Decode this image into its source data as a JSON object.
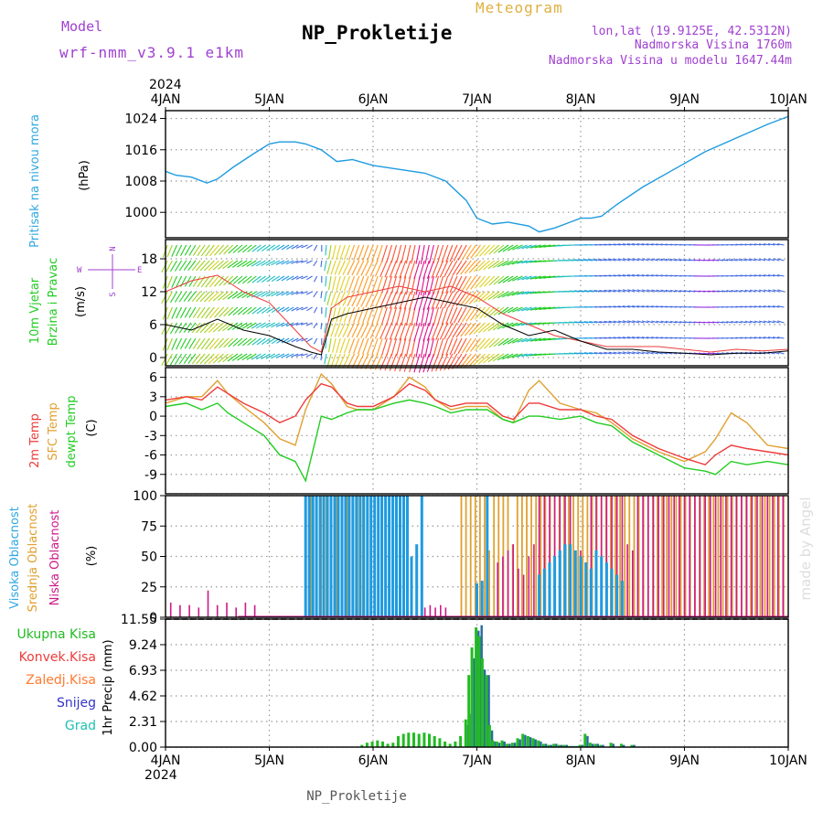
{
  "header": {
    "model_label": "Model",
    "model_name": "wrf-nmm_v3.9.1 e1km",
    "title": "NP_Prokletije",
    "subtitle": "Meteogram",
    "lonlat": "lon,lat (19.9125E, 42.5312N)",
    "altitude": "Nadmorska Visina 1760m",
    "model_altitude": "Nadmorska Visina u modelu 1647.44m",
    "credit": "made by Angel",
    "footer": "NP_Prokletije"
  },
  "colors": {
    "pressure": "#1e9be0",
    "temp2m": "#ee3b3b",
    "sfc_temp": "#e0a030",
    "dewpoint": "#22cc22",
    "high_cloud": "#1e9be0",
    "mid_cloud": "#e0a030",
    "low_cloud": "#cc1a88",
    "precip_total": "#22bb22",
    "precip_snow": "#3333cc",
    "label_purple": "#a040d0",
    "label_blue": "#30a8e0"
  },
  "time_axis": {
    "year": "2024",
    "labels": [
      "4JAN",
      "5JAN",
      "6JAN",
      "7JAN",
      "8JAN",
      "9JAN",
      "10JAN"
    ]
  },
  "chart_data": [
    {
      "type": "line",
      "id": "pressure",
      "ylabel": "Pritisak na nivou mora",
      "unit": "(hPa)",
      "yticks": [
        1000,
        1008,
        1016,
        1024
      ],
      "ylim": [
        993.5,
        1026
      ],
      "x": [
        0,
        0.1,
        0.25,
        0.4,
        0.5,
        0.65,
        0.85,
        1.0,
        1.1,
        1.25,
        1.35,
        1.5,
        1.6,
        1.65,
        1.8,
        2.0,
        2.25,
        2.5,
        2.7,
        2.9,
        3.0,
        3.15,
        3.3,
        3.5,
        3.6,
        3.75,
        3.9,
        4.0,
        4.1,
        4.2,
        4.35,
        4.6,
        4.9,
        5.2,
        5.5,
        5.8,
        6.0
      ],
      "series": [
        {
          "name": "pressure",
          "values": [
            1010.5,
            1009.5,
            1009,
            1007.5,
            1008.5,
            1011.5,
            1015,
            1017.5,
            1018,
            1018,
            1017.5,
            1016,
            1014,
            1013,
            1013.5,
            1012,
            1011,
            1010,
            1008,
            1003,
            998.5,
            997,
            997.5,
            996.5,
            995,
            996,
            997.5,
            998.5,
            998.5,
            999,
            1002,
            1006.5,
            1011,
            1015.5,
            1019,
            1022.5,
            1024.5
          ]
        }
      ]
    },
    {
      "type": "line",
      "id": "wind",
      "ylabel": "10m Vjetar",
      "ylabel2": "Brzina i Pravac",
      "unit": "(m/s)",
      "compass": {
        "n": "N",
        "s": "S",
        "w": "W",
        "e": "E"
      },
      "yticks": [
        0,
        6,
        12,
        18
      ],
      "ylim": [
        -1.5,
        21.5
      ],
      "x": [
        0,
        0.25,
        0.5,
        0.75,
        1.0,
        1.25,
        1.4,
        1.5,
        1.6,
        1.75,
        2.0,
        2.25,
        2.5,
        2.75,
        3.0,
        3.25,
        3.5,
        3.75,
        4.0,
        4.25,
        4.5,
        4.75,
        5.0,
        5.25,
        5.5,
        5.75,
        6.0
      ],
      "series": [
        {
          "name": "speed",
          "values": [
            6,
            5,
            7,
            5,
            4,
            2,
            1,
            0.5,
            7,
            8,
            9,
            10,
            11,
            10,
            9,
            6,
            4,
            5,
            3,
            1.5,
            1.5,
            1,
            0.8,
            0.5,
            0.8,
            0.8,
            1.2
          ]
        },
        {
          "name": "gust",
          "values": [
            12,
            14,
            15,
            12,
            10,
            5,
            2,
            1,
            9,
            11,
            12,
            13,
            12,
            13,
            11,
            8,
            6,
            4,
            3,
            2,
            2,
            2,
            1.5,
            1,
            1.5,
            1.2,
            1.5
          ]
        }
      ],
      "direction_deg": [
        200,
        210,
        220,
        230,
        235,
        240,
        250,
        180,
        190,
        200,
        200,
        195,
        190,
        200,
        215,
        230,
        250,
        260,
        270,
        275,
        280,
        280,
        275,
        270,
        275,
        280,
        280
      ]
    },
    {
      "type": "line",
      "id": "temperature",
      "ylabel": "2m Temp",
      "ylabel2": "SFC Temp",
      "ylabel3": "dewpt Temp",
      "unit": "(C)",
      "yticks": [
        -9,
        -6,
        -3,
        0,
        3,
        6
      ],
      "ylim": [
        -12,
        7.5
      ],
      "x": [
        0,
        0.2,
        0.35,
        0.5,
        0.6,
        0.75,
        0.95,
        1.1,
        1.25,
        1.35,
        1.5,
        1.6,
        1.75,
        1.85,
        2.0,
        2.2,
        2.35,
        2.5,
        2.6,
        2.75,
        2.9,
        3.1,
        3.25,
        3.35,
        3.5,
        3.6,
        3.8,
        4.0,
        4.15,
        4.3,
        4.5,
        4.75,
        5.0,
        5.2,
        5.3,
        5.45,
        5.6,
        5.8,
        6.0
      ],
      "series": [
        {
          "name": "2m",
          "values": [
            2.5,
            3,
            2.5,
            4.5,
            3.5,
            2,
            0.5,
            -1,
            0,
            2.5,
            5,
            4.5,
            2,
            1.5,
            1.5,
            3,
            5,
            4,
            2.5,
            1.5,
            2,
            2,
            0,
            -0.5,
            2,
            2,
            1,
            1,
            0,
            -0.5,
            -3,
            -5,
            -6.5,
            -7.5,
            -6,
            -4.5,
            -5,
            -5.5,
            -6
          ]
        },
        {
          "name": "sfc",
          "values": [
            2,
            3,
            3,
            5.5,
            3.5,
            1.5,
            -1,
            -3.5,
            -4.5,
            1,
            6.5,
            5,
            1.5,
            1,
            1,
            3,
            6,
            4.5,
            2.5,
            1,
            1.5,
            1.5,
            -0.5,
            -1,
            4,
            5.5,
            2,
            1,
            0.5,
            -1,
            -3.5,
            -5.5,
            -7,
            -5.5,
            -3.5,
            0.5,
            -1,
            -4.5,
            -5
          ]
        },
        {
          "name": "dewpt",
          "values": [
            1.5,
            2,
            1,
            2,
            0.5,
            -1,
            -3,
            -6,
            -7,
            -10,
            0,
            -0.5,
            0.5,
            1,
            1,
            2,
            2.5,
            2,
            1.5,
            0.5,
            1,
            1,
            -0.5,
            -1,
            0,
            0,
            -0.5,
            0,
            -1,
            -1.5,
            -4,
            -6,
            -8,
            -8.5,
            -9,
            -7,
            -7.5,
            -7,
            -7.5
          ]
        }
      ]
    },
    {
      "type": "bar",
      "id": "cloud",
      "ylabel": "Visoka Oblacnost",
      "ylabel2": "Srednja Oblacnost",
      "ylabel3": "Niska Oblacnost",
      "unit": "(%)",
      "yticks": [
        0,
        25,
        50,
        75,
        100
      ],
      "ylim": [
        0,
        100
      ],
      "segments": [
        {
          "name": "low",
          "from": 0.05,
          "to": 0.9,
          "step": 0.09,
          "values": [
            12,
            10,
            10,
            8,
            22,
            10,
            12,
            8,
            12,
            10
          ]
        },
        {
          "name": "mid",
          "from": 1.35,
          "to": 1.95,
          "step": 0.05,
          "values": [
            100,
            100,
            100,
            100,
            100,
            100,
            100,
            100,
            100,
            100,
            100,
            100,
            100
          ]
        },
        {
          "name": "high",
          "from": 1.35,
          "to": 2.35,
          "step": 0.035,
          "values": [
            100,
            100,
            100,
            100,
            100,
            100,
            100,
            100,
            100,
            100,
            100,
            100,
            100,
            100,
            100,
            100,
            100,
            100,
            100,
            100,
            100,
            100,
            100,
            100,
            100,
            100,
            100,
            100,
            100
          ]
        },
        {
          "name": "high",
          "from": 2.37,
          "to": 2.47,
          "step": 0.05,
          "values": [
            50,
            60,
            100
          ]
        },
        {
          "name": "low",
          "from": 2.5,
          "to": 2.7,
          "step": 0.05,
          "values": [
            8,
            10,
            8,
            10,
            8
          ]
        },
        {
          "name": "mid",
          "from": 2.85,
          "to": 6.0,
          "step": 0.045,
          "values": [
            100,
            100,
            100,
            100,
            100,
            100,
            55,
            100,
            100,
            100,
            100,
            60,
            100,
            100,
            100,
            100,
            100,
            100,
            100,
            100,
            100,
            100,
            100,
            100,
            100,
            100,
            100,
            100,
            100,
            100,
            100,
            100,
            100,
            100,
            100,
            100,
            100,
            100,
            100,
            100,
            100,
            100,
            100,
            100,
            100,
            100,
            100,
            100,
            100,
            100,
            100,
            100,
            100,
            100,
            100,
            100,
            100,
            100,
            100,
            100,
            100,
            100,
            100,
            100,
            100,
            100,
            100,
            100,
            100,
            100
          ]
        },
        {
          "name": "low",
          "from": 3.2,
          "to": 6.0,
          "step": 0.05,
          "values": [
            45,
            50,
            55,
            60,
            40,
            35,
            50,
            60,
            100,
            100,
            100,
            100,
            100,
            100,
            100,
            50,
            55,
            45,
            100,
            100,
            100,
            100,
            100,
            100,
            100,
            60,
            55,
            100,
            100,
            100,
            100,
            100,
            100,
            100,
            100,
            100,
            100,
            100,
            100,
            100,
            100,
            100,
            100,
            100,
            100,
            100,
            100,
            100,
            100,
            100,
            100,
            100,
            100,
            100,
            100,
            100
          ]
        },
        {
          "name": "high",
          "from": 3.0,
          "to": 3.1,
          "step": 0.05,
          "values": [
            28,
            30,
            100
          ]
        },
        {
          "name": "high",
          "from": 3.6,
          "to": 4.4,
          "step": 0.05,
          "values": [
            35,
            40,
            45,
            50,
            55,
            60,
            60,
            55,
            50,
            45,
            40,
            55,
            50,
            45,
            40,
            35,
            30
          ]
        }
      ]
    },
    {
      "type": "bar",
      "id": "precip",
      "ylabel": "1hr Precip (mm)",
      "yticks": [
        0,
        2.31,
        4.62,
        6.93,
        9.24,
        11.55
      ],
      "ylim": [
        0,
        11.55
      ],
      "legend": [
        {
          "name": "Ukupna Kisa",
          "color": "#22bb22"
        },
        {
          "name": "Konvek.Kisa",
          "color": "#ee3b3b"
        },
        {
          "name": "Zaledj.Kisa",
          "color": "#ff7a30"
        },
        {
          "name": "Snijeg",
          "color": "#3333cc"
        },
        {
          "name": "Grad",
          "color": "#20c0b0"
        }
      ],
      "x": [
        1.9,
        1.95,
        2.0,
        2.05,
        2.1,
        2.15,
        2.2,
        2.25,
        2.3,
        2.35,
        2.4,
        2.45,
        2.5,
        2.55,
        2.6,
        2.65,
        2.7,
        2.75,
        2.8,
        2.85,
        2.9,
        2.93,
        2.96,
        3.0,
        3.03,
        3.06,
        3.1,
        3.13,
        3.16,
        3.2,
        3.25,
        3.3,
        3.35,
        3.4,
        3.45,
        3.5,
        3.55,
        3.6,
        3.65,
        3.7,
        3.75,
        3.8,
        3.85,
        3.9,
        3.95,
        4.0,
        4.05,
        4.1,
        4.15,
        4.2,
        4.3,
        4.4,
        4.5
      ],
      "series": [
        {
          "name": "total",
          "values": [
            0.2,
            0.4,
            0.5,
            0.6,
            0.5,
            0.3,
            0.4,
            1.0,
            1.2,
            1.3,
            1.3,
            1.2,
            1.3,
            1.2,
            1.0,
            0.8,
            0.5,
            0.3,
            0.5,
            1.0,
            2.5,
            6.5,
            9.0,
            10.8,
            10.0,
            8.0,
            6.5,
            2.0,
            0.6,
            0.5,
            0.6,
            0.3,
            0.4,
            0.8,
            1.2,
            1.0,
            0.8,
            0.6,
            0.3,
            0.2,
            0.3,
            0.2,
            0.2,
            0.1,
            0.1,
            0.2,
            1.2,
            0.4,
            0.3,
            0.2,
            0.4,
            0.3,
            0.2
          ]
        },
        {
          "name": "snow",
          "values": [
            0,
            0,
            0,
            0,
            0,
            0,
            0,
            0,
            0,
            0,
            0,
            0,
            0,
            0,
            0,
            0,
            0,
            0,
            0,
            0,
            2.0,
            3.0,
            8.0,
            10.5,
            11.0,
            7.0,
            6.5,
            1.5,
            0.5,
            0.4,
            0.5,
            0.3,
            0.4,
            0.7,
            1.1,
            0.9,
            0.7,
            0.5,
            0.3,
            0.2,
            0.3,
            0.2,
            0.2,
            0.1,
            0.1,
            0.2,
            1.0,
            0.3,
            0.3,
            0.2,
            0.3,
            0.2,
            0.2
          ]
        }
      ]
    }
  ]
}
